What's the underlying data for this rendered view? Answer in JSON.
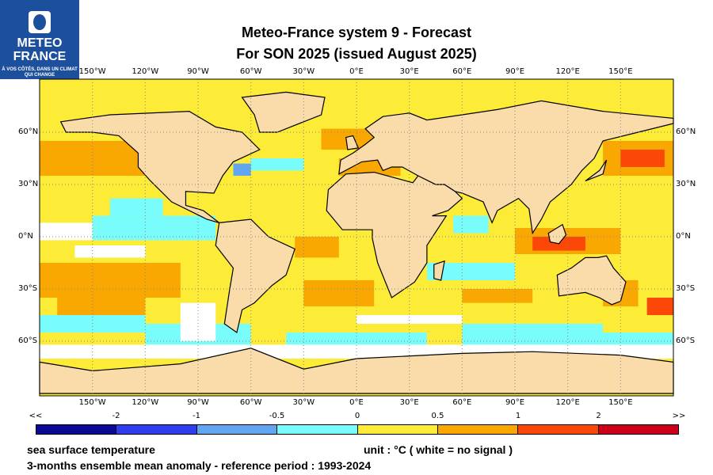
{
  "logo": {
    "name_line1": "METEO",
    "name_line2": "FRANCE",
    "tagline": "À VOS CÔTÉS, DANS UN CLIMAT QUI CHANGE"
  },
  "title": {
    "line1": "Meteo-France system 9  -  Forecast",
    "line2": "For SON 2025      (issued August 2025)"
  },
  "map": {
    "lon_labels": [
      "150°W",
      "120°W",
      "90°W",
      "60°W",
      "30°W",
      "0°E",
      "30°E",
      "60°E",
      "90°E",
      "120°E",
      "150°E"
    ],
    "lon_values": [
      -150,
      -120,
      -90,
      -60,
      -30,
      0,
      30,
      60,
      90,
      120,
      150
    ],
    "lat_labels": [
      "60°N",
      "30°N",
      "0°N",
      "30°S",
      "60°S"
    ],
    "lat_values": [
      60,
      30,
      0,
      -30,
      -60
    ],
    "colors": {
      "land": "#fadcaa",
      "coast": "#000000",
      "no_signal": "#ffffff"
    }
  },
  "colorbar": {
    "labels": [
      "<<",
      "-2",
      "-1",
      "-0.5",
      "0",
      "0.5",
      "1",
      "2",
      ">>"
    ],
    "colors": [
      "#0a0a96",
      "#2f3cf0",
      "#62a6f2",
      "#78fcfc",
      "#fcec38",
      "#f8a800",
      "#fb4808",
      "#cc0018"
    ]
  },
  "footer": {
    "variable": "sea surface temperature",
    "unit": "unit : °C  ( white = no signal )",
    "description": "3-months ensemble mean anomaly - reference period : 1993-2024"
  }
}
